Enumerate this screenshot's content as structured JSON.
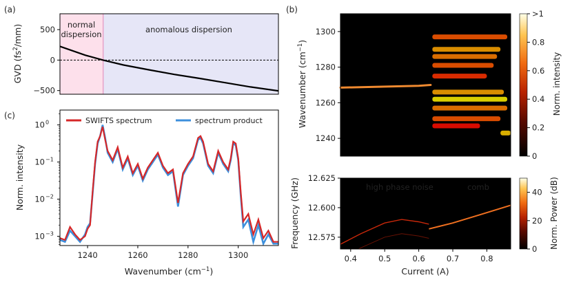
{
  "panels": {
    "a": "(a)",
    "b": "(b)",
    "c": "(c)"
  },
  "chart_data": [
    {
      "id": "a",
      "type": "line",
      "ylabel_main": "GVD (fs",
      "ylabel_sup": "2",
      "ylabel_end": "/mm)",
      "xlim": [
        1230,
        1316
      ],
      "ylim": [
        -560,
        760
      ],
      "yticks": [
        -500,
        0,
        500
      ],
      "ytick_labels": [
        "−500",
        "0",
        "500"
      ],
      "zero_wavenumber": 1247,
      "region_labels": {
        "normal_1": "normal",
        "normal_2": "dispersion",
        "anomalous": "anomalous dispersion"
      },
      "colors": {
        "normal": "#fde0eb",
        "anomalous": "#e6e6f7",
        "normal_text": "#e8303a",
        "anomalous_text": "#3b8fd6",
        "divider": "#e8a3c8"
      },
      "x": [
        1230,
        1240,
        1247,
        1255,
        1265,
        1275,
        1285,
        1295,
        1305,
        1316
      ],
      "y": [
        225,
        80,
        0,
        -80,
        -160,
        -235,
        -300,
        -370,
        -440,
        -505
      ]
    },
    {
      "id": "c",
      "type": "line",
      "yscale": "log",
      "xlabel": "Wavenumber (cm",
      "xlabel_sup": "−1",
      "xlabel_end": ")",
      "ylabel": "Norm. intensity",
      "xlim": [
        1229,
        1316
      ],
      "ylim_log10": [
        -3.25,
        0.4
      ],
      "xticks": [
        1240,
        1260,
        1280,
        1300
      ],
      "xtick_labels": [
        "1240",
        "1260",
        "1280",
        "1300"
      ],
      "yticks_log10": [
        -3,
        -2,
        -1,
        0
      ],
      "ytick_base": "10",
      "ytick_exp": [
        "−3",
        "−2",
        "−1",
        "0"
      ],
      "legend": {
        "s1": "SWIFTS spectrum",
        "s2": "spectrum product"
      },
      "colors": {
        "s1": "#d62728",
        "s2": "#3c8fdc"
      },
      "series": [
        {
          "name": "SWIFTS spectrum",
          "x": [
            1229,
            1231,
            1233,
            1235,
            1237,
            1239,
            1240,
            1241,
            1242,
            1243,
            1244,
            1245,
            1246,
            1247,
            1248,
            1250,
            1252,
            1254,
            1256,
            1258,
            1260,
            1262,
            1264,
            1266,
            1268,
            1270,
            1272,
            1274,
            1276,
            1278,
            1280,
            1282,
            1284,
            1285,
            1286,
            1288,
            1290,
            1292,
            1294,
            1296,
            1297,
            1298,
            1299,
            1300,
            1301,
            1302,
            1304,
            1306,
            1308,
            1310,
            1312,
            1314,
            1316
          ],
          "y": [
            -3.05,
            -3.1,
            -2.75,
            -2.95,
            -3.1,
            -3.0,
            -2.8,
            -2.7,
            -1.8,
            -1.0,
            -0.45,
            -0.3,
            -0.05,
            -0.4,
            -0.7,
            -0.95,
            -0.6,
            -1.15,
            -0.85,
            -1.3,
            -1.05,
            -1.45,
            -1.15,
            -0.95,
            -0.75,
            -1.1,
            -1.3,
            -1.2,
            -2.1,
            -1.3,
            -1.05,
            -0.85,
            -0.35,
            -0.3,
            -0.45,
            -1.05,
            -1.25,
            -0.7,
            -1.0,
            -1.2,
            -0.9,
            -0.45,
            -0.5,
            -0.9,
            -1.8,
            -2.6,
            -2.4,
            -2.95,
            -2.55,
            -3.05,
            -2.85,
            -3.15,
            -3.15
          ]
        },
        {
          "name": "spectrum product",
          "x": [
            1229,
            1231,
            1233,
            1235,
            1237,
            1239,
            1240,
            1241,
            1242,
            1243,
            1244,
            1245,
            1246,
            1247,
            1248,
            1250,
            1252,
            1254,
            1256,
            1258,
            1260,
            1262,
            1264,
            1266,
            1268,
            1270,
            1272,
            1274,
            1276,
            1278,
            1280,
            1282,
            1284,
            1285,
            1286,
            1288,
            1290,
            1292,
            1294,
            1296,
            1297,
            1298,
            1299,
            1300,
            1301,
            1302,
            1304,
            1306,
            1308,
            1310,
            1312,
            1314,
            1316
          ],
          "y": [
            -3.1,
            -3.15,
            -2.85,
            -3.0,
            -3.15,
            -2.95,
            -2.75,
            -2.65,
            -1.85,
            -1.05,
            -0.5,
            -0.3,
            0.0,
            -0.35,
            -0.75,
            -1.0,
            -0.65,
            -1.2,
            -0.9,
            -1.35,
            -1.1,
            -1.5,
            -1.2,
            -1.0,
            -0.8,
            -1.15,
            -1.35,
            -1.25,
            -2.2,
            -1.35,
            -1.1,
            -0.9,
            -0.4,
            -0.35,
            -0.5,
            -1.1,
            -1.3,
            -0.75,
            -1.05,
            -1.25,
            -0.95,
            -0.5,
            -0.55,
            -0.95,
            -1.9,
            -2.75,
            -2.55,
            -3.15,
            -2.7,
            -3.2,
            -2.95,
            -3.2,
            -3.2
          ]
        }
      ]
    },
    {
      "id": "b-top",
      "type": "heatmap",
      "ylabel": "Wavenumber (cm",
      "ylabel_sup": "−1",
      "ylabel_end": ")",
      "ylim": [
        1230,
        1310
      ],
      "xlim": [
        0.37,
        0.87
      ],
      "yticks": [
        1240,
        1260,
        1280,
        1300
      ],
      "ytick_labels": [
        "1240",
        "1260",
        "1280",
        "1300"
      ],
      "colorbar_label": "Norm. intensity",
      "colorbar_ticks": [
        0,
        0.2,
        0.4,
        0.6,
        0.8,
        1.0
      ],
      "colorbar_tick_labels": [
        "0",
        "0.2",
        "0.4",
        "0.6",
        "0.8",
        ">1"
      ],
      "line": {
        "x": [
          0.37,
          0.6,
          0.635
        ],
        "y": [
          1268.5,
          1269.5,
          1270.0
        ]
      },
      "bands": [
        {
          "y": 1297,
          "x0": 0.64,
          "x1": 0.86,
          "v": 0.45
        },
        {
          "y": 1290,
          "x0": 0.64,
          "x1": 0.84,
          "v": 0.55
        },
        {
          "y": 1286,
          "x0": 0.64,
          "x1": 0.83,
          "v": 0.5
        },
        {
          "y": 1281,
          "x0": 0.64,
          "x1": 0.82,
          "v": 0.45
        },
        {
          "y": 1275,
          "x0": 0.64,
          "x1": 0.8,
          "v": 0.4
        },
        {
          "y": 1266,
          "x0": 0.64,
          "x1": 0.85,
          "v": 0.55
        },
        {
          "y": 1262,
          "x0": 0.64,
          "x1": 0.86,
          "v": 0.65
        },
        {
          "y": 1257,
          "x0": 0.64,
          "x1": 0.86,
          "v": 0.5
        },
        {
          "y": 1251,
          "x0": 0.64,
          "x1": 0.84,
          "v": 0.45
        },
        {
          "y": 1247,
          "x0": 0.64,
          "x1": 0.78,
          "v": 0.35
        },
        {
          "y": 1243,
          "x0": 0.84,
          "x1": 0.87,
          "v": 0.6
        }
      ]
    },
    {
      "id": "b-bottom",
      "type": "heatmap",
      "ylabel": "Frequency (GHz)",
      "xlabel": "Current (A)",
      "ylim": [
        12.565,
        12.625
      ],
      "xlim": [
        0.37,
        0.87
      ],
      "yticks": [
        12.575,
        12.6,
        12.625
      ],
      "ytick_labels": [
        "12.575",
        "12.600",
        "12.625"
      ],
      "xticks": [
        0.4,
        0.5,
        0.6,
        0.7,
        0.8
      ],
      "xtick_labels": [
        "0.4",
        "0.5",
        "0.6",
        "0.7",
        "0.8"
      ],
      "annotations": {
        "noise": "high phase noise",
        "comb": "comb"
      },
      "colorbar_label": "Norm. Power (dB)",
      "colorbar_ticks": [
        0,
        20,
        40
      ],
      "colorbar_tick_labels": [
        "0",
        "20",
        "40"
      ],
      "colorbar_max": 50,
      "noise_line": {
        "x": [
          0.37,
          0.43,
          0.5,
          0.55,
          0.6,
          0.63
        ],
        "y": [
          12.569,
          12.578,
          12.587,
          12.59,
          12.588,
          12.586
        ]
      },
      "comb_line": {
        "x": [
          0.63,
          0.7,
          0.78,
          0.87
        ],
        "y": [
          12.582,
          12.587,
          12.594,
          12.602
        ]
      }
    }
  ]
}
